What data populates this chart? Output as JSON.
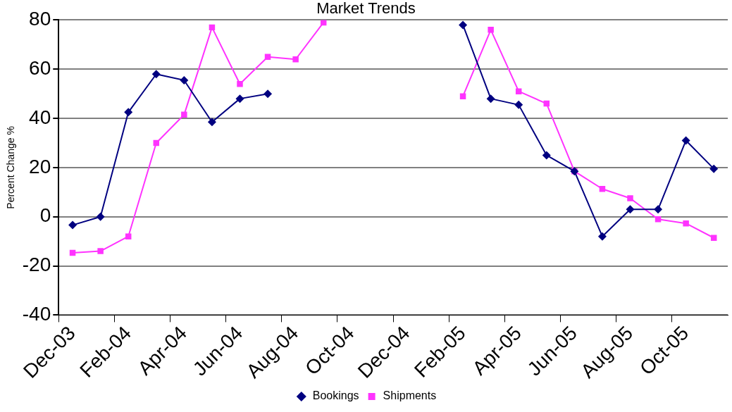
{
  "chart_data": {
    "type": "line",
    "title": "Market Trends",
    "ylabel": "Percent Change %",
    "categories": [
      "Dec-03",
      null,
      "Feb-04",
      null,
      "Apr-04",
      null,
      "Jun-04",
      null,
      "Aug-04",
      null,
      "Oct-04",
      null,
      "Dec-04",
      null,
      "Feb-05",
      null,
      "Apr-05",
      null,
      "Jun-05",
      null,
      "Aug-05",
      null,
      "Oct-05",
      null
    ],
    "series": [
      {
        "name": "Bookings",
        "color": "#000080",
        "marker": "diamond",
        "values": [
          -3.4,
          0,
          42.5,
          58,
          55.5,
          38.5,
          48,
          50,
          null,
          null,
          null,
          null,
          null,
          null,
          78,
          48,
          45.5,
          25,
          18.5,
          -8,
          3,
          3,
          31,
          19.5
        ]
      },
      {
        "name": "Shipments",
        "color": "#ff33ff",
        "marker": "square",
        "values": [
          -14.7,
          -14,
          -8,
          30,
          41.5,
          77,
          54,
          65,
          64,
          79,
          null,
          null,
          null,
          null,
          49,
          76,
          51,
          46,
          18.5,
          11.3,
          7.5,
          -1,
          -2.7,
          -8.6
        ]
      }
    ],
    "ylim": [
      -40,
      80
    ],
    "yticks": [
      -40,
      -20,
      0,
      20,
      40,
      60,
      80
    ],
    "grid": "y",
    "legend": "bottom",
    "line_style": "solid"
  }
}
